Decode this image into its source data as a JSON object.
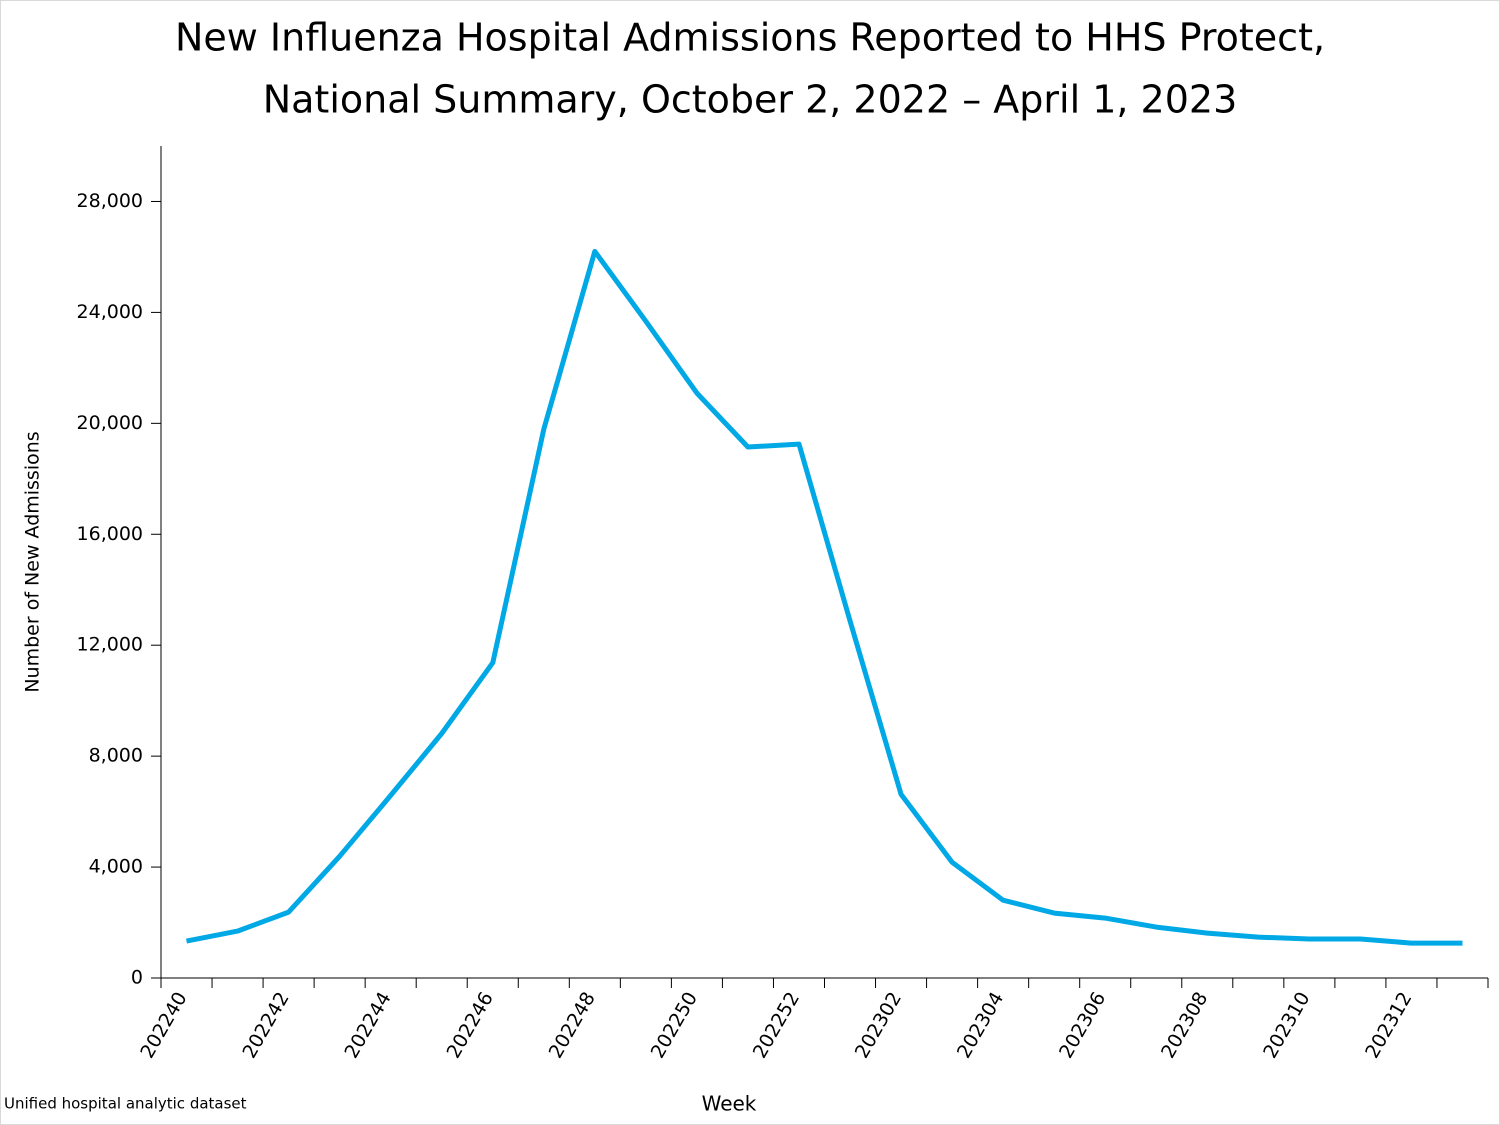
{
  "chart_data": {
    "type": "line",
    "title": [
      "New Influenza Hospital Admissions Reported to HHS Protect,",
      "National Summary, October 2, 2022 – April 1, 2023"
    ],
    "x_label": "Week",
    "y_label": "Number of New Admissions",
    "annotation": "Unified hospital analytic dataset",
    "categories": [
      "202240",
      null,
      "202242",
      null,
      "202244",
      null,
      "202246",
      null,
      "202248",
      null,
      "202250",
      null,
      "202252",
      null,
      "202302",
      null,
      "202304",
      null,
      "202306",
      null,
      "202308",
      null,
      "202310",
      null,
      "202312",
      null
    ],
    "values": [
      1330,
      1690,
      2375,
      4390,
      6585,
      8815,
      11370,
      19790,
      26200,
      23680,
      21090,
      19145,
      19250,
      12880,
      6620,
      4175,
      2805,
      2340,
      2160,
      1835,
      1620,
      1475,
      1405,
      1405,
      1260,
      1260
    ],
    "color": "#00a9e6",
    "ylim": [
      0,
      30000
    ],
    "yticks": [
      0,
      {
        "value": 4000,
        "label": "4,000"
      },
      {
        "value": 8000,
        "label": "8,000"
      },
      {
        "value": 12000,
        "label": "12,000"
      },
      {
        "value": 16000,
        "label": "16,000"
      },
      {
        "value": 20000,
        "label": "20,000"
      },
      {
        "value": 24000,
        "label": "24,000"
      },
      {
        "value": 28000,
        "label": "28,000"
      }
    ],
    "grid": false
  }
}
